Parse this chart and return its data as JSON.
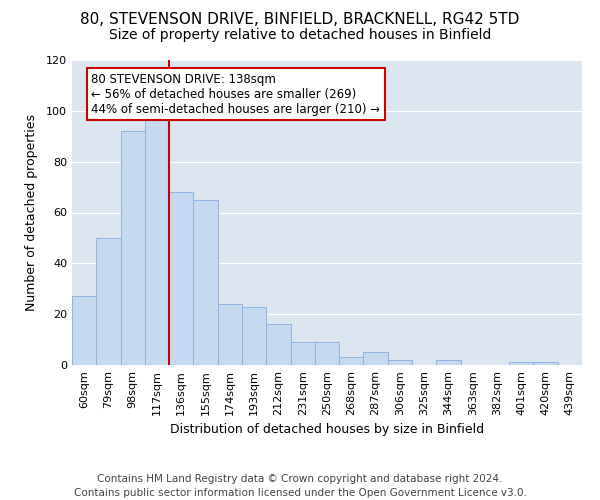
{
  "title": "80, STEVENSON DRIVE, BINFIELD, BRACKNELL, RG42 5TD",
  "subtitle": "Size of property relative to detached houses in Binfield",
  "xlabel": "Distribution of detached houses by size in Binfield",
  "ylabel": "Number of detached properties",
  "categories": [
    "60sqm",
    "79sqm",
    "98sqm",
    "117sqm",
    "136sqm",
    "155sqm",
    "174sqm",
    "193sqm",
    "212sqm",
    "231sqm",
    "250sqm",
    "268sqm",
    "287sqm",
    "306sqm",
    "325sqm",
    "344sqm",
    "363sqm",
    "382sqm",
    "401sqm",
    "420sqm",
    "439sqm"
  ],
  "values": [
    27,
    50,
    92,
    97,
    68,
    65,
    24,
    23,
    16,
    9,
    9,
    3,
    5,
    2,
    0,
    2,
    0,
    0,
    1,
    1,
    0
  ],
  "bar_color": "#c5d9f1",
  "bar_edge_color": "#8db4e2",
  "vline_color": "#cc0000",
  "vline_x": 3.5,
  "annotation_title": "80 STEVENSON DRIVE: 138sqm",
  "annotation_line1": "← 56% of detached houses are smaller (269)",
  "annotation_line2": "44% of semi-detached houses are larger (210) →",
  "annotation_box_color": "#ffffff",
  "annotation_box_edge": "#cc0000",
  "ylim": [
    0,
    120
  ],
  "yticks": [
    0,
    20,
    40,
    60,
    80,
    100,
    120
  ],
  "footer1": "Contains HM Land Registry data © Crown copyright and database right 2024.",
  "footer2": "Contains public sector information licensed under the Open Government Licence v3.0.",
  "bg_color": "#dce6f1",
  "fig_bg_color": "#ffffff",
  "grid_color": "#ffffff",
  "title_fontsize": 11,
  "subtitle_fontsize": 10,
  "axis_label_fontsize": 9,
  "tick_fontsize": 8,
  "footer_fontsize": 7.5,
  "annotation_fontsize": 8.5
}
